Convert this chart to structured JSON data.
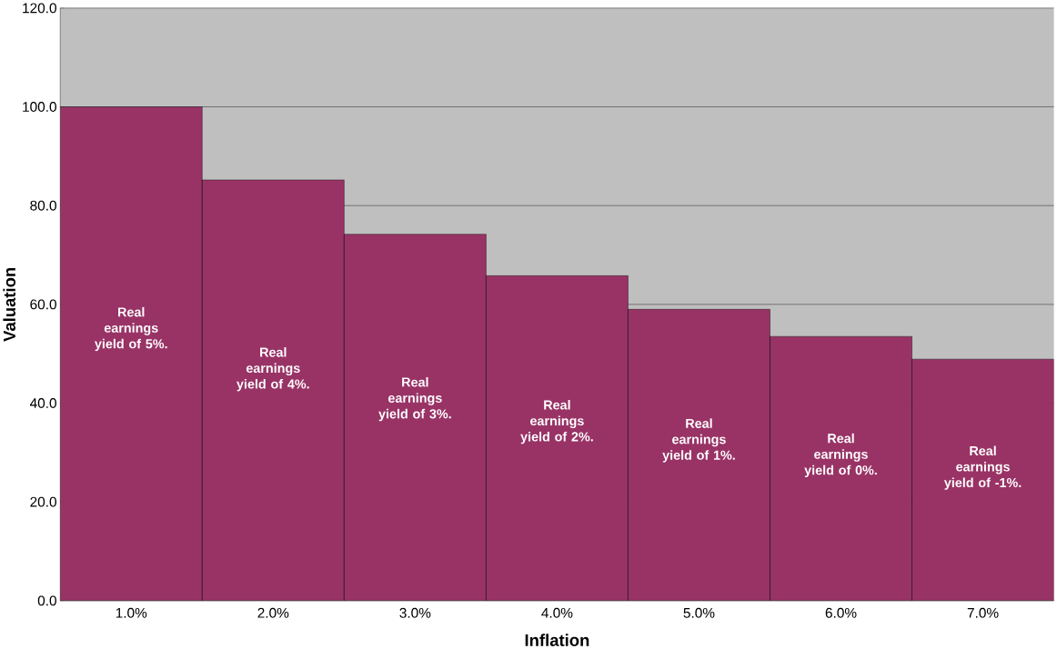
{
  "chart_data": {
    "type": "bar",
    "xlabel": "Inflation",
    "ylabel": "Valuation",
    "categories": [
      "1.0%",
      "2.0%",
      "3.0%",
      "4.0%",
      "5.0%",
      "6.0%",
      "7.0%"
    ],
    "values": [
      100,
      85.2,
      74.2,
      65.8,
      59.0,
      53.5,
      48.9
    ],
    "color": "#993366",
    "ylim": [
      0,
      120
    ],
    "yticks": [
      {
        "value": 0,
        "label": "0.0"
      },
      {
        "value": 20,
        "label": "20.0"
      },
      {
        "value": 40,
        "label": "40.0"
      },
      {
        "value": 60,
        "label": "60.0"
      },
      {
        "value": 80,
        "label": "80.0"
      },
      {
        "value": 100,
        "label": "100.0"
      },
      {
        "value": 120,
        "label": "120.0"
      }
    ],
    "grid": "y",
    "annotations": [
      "Real earnings yield of 5%.",
      "Real earnings yield of 4%.",
      "Real earnings yield of 3%.",
      "Real earnings yield of 2%.",
      "Real earnings yield of 1%.",
      "Real earnings yield of 0%.",
      "Real earnings yield of -1%."
    ]
  }
}
